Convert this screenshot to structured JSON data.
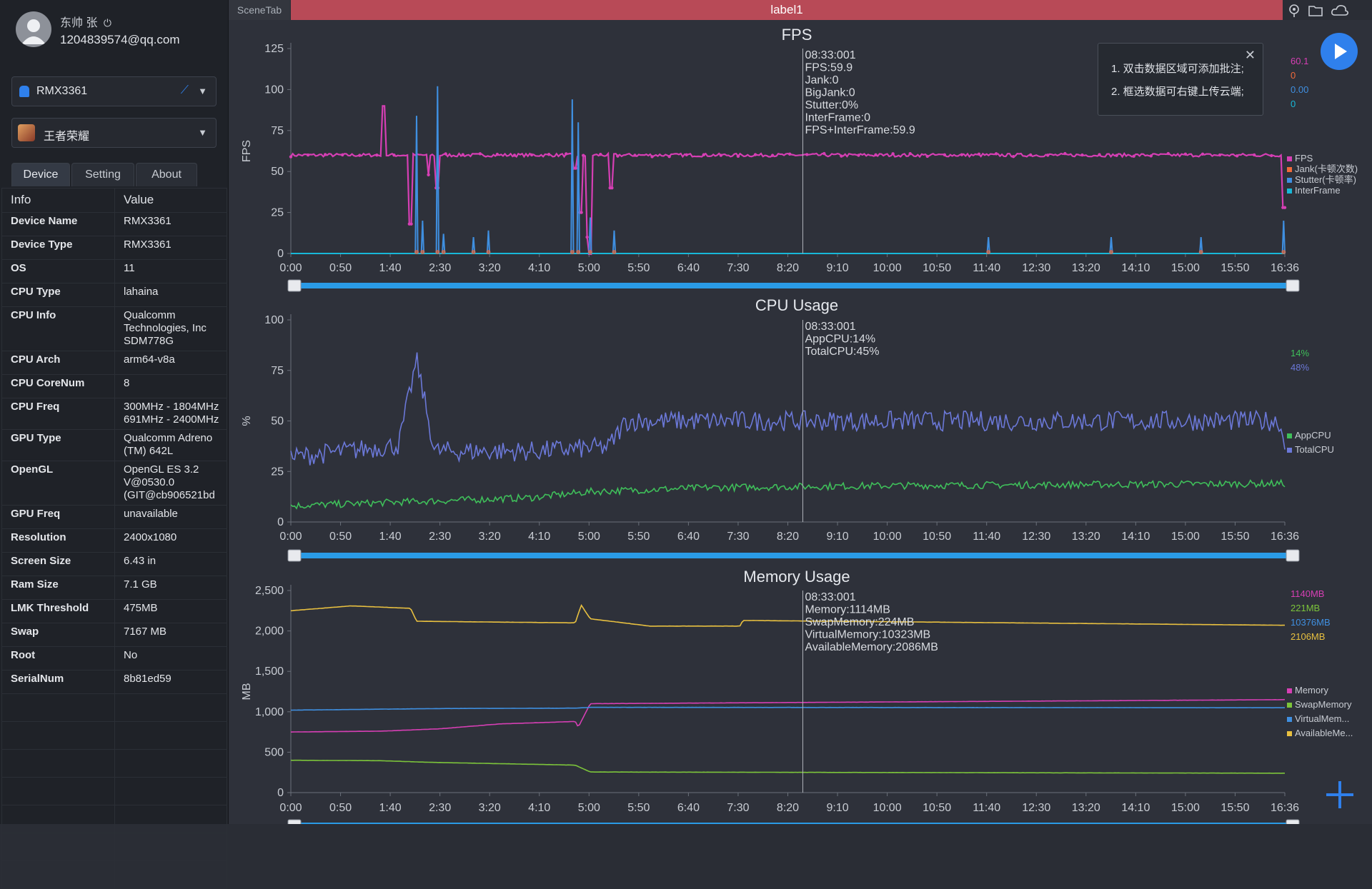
{
  "user": {
    "name": "东帅 张",
    "email": "1204839574@qq.com"
  },
  "device_selector": {
    "value": "RMX3361"
  },
  "app_selector": {
    "value": "王者荣耀"
  },
  "tabs": [
    "Device",
    "Setting",
    "About"
  ],
  "info_table": {
    "headers": [
      "Info",
      "Value"
    ],
    "rows": [
      {
        "k": "Device Name",
        "v": "RMX3361"
      },
      {
        "k": "Device Type",
        "v": "RMX3361"
      },
      {
        "k": "OS",
        "v": "11"
      },
      {
        "k": "CPU Type",
        "v": "lahaina"
      },
      {
        "k": "CPU Info",
        "v": "Qualcomm\nTechnologies, Inc\nSDM778G"
      },
      {
        "k": "CPU Arch",
        "v": "arm64-v8a"
      },
      {
        "k": "CPU CoreNum",
        "v": "8"
      },
      {
        "k": "CPU Freq",
        "v": "300MHz - 1804MHz\n691MHz - 2400MHz"
      },
      {
        "k": "GPU Type",
        "v": "Qualcomm Adreno\n(TM) 642L"
      },
      {
        "k": "OpenGL",
        "v": "OpenGL ES 3.2\nV@0530.0\n(GIT@cb906521bd"
      },
      {
        "k": "GPU Freq",
        "v": "unavailable"
      },
      {
        "k": "Resolution",
        "v": "2400x1080"
      },
      {
        "k": "Screen Size",
        "v": "6.43 in"
      },
      {
        "k": "Ram Size",
        "v": "7.1 GB"
      },
      {
        "k": "LMK Threshold",
        "v": "475MB"
      },
      {
        "k": "Swap",
        "v": "7167 MB"
      },
      {
        "k": "Root",
        "v": "No"
      },
      {
        "k": "SerialNum",
        "v": "8b81ed59"
      }
    ]
  },
  "topbar": {
    "scene_tab": "SceneTab",
    "label": "label1"
  },
  "toolbar_icons": [
    "location-icon",
    "folder-icon",
    "cloud-icon"
  ],
  "notice": {
    "lines": [
      "1. 双击数据区域可添加批注;",
      "2. 框选数据可右键上传云端;"
    ]
  },
  "colors": {
    "fps": "#d63fb4",
    "jank": "#f06a3a",
    "stutter": "#3f8fe0",
    "interframe": "#18b8d8",
    "appcpu": "#3fbf5a",
    "totalcpu": "#6b78d8",
    "memory": "#d63fb4",
    "swap": "#7cc43a",
    "virtual": "#3f8fe0",
    "available": "#e8c040",
    "accent": "#2a9be6"
  },
  "chart_data": [
    {
      "type": "line",
      "title": "FPS",
      "ylabel": "FPS",
      "ylim": [
        0,
        125
      ],
      "yticks": [
        "0",
        "25",
        "50",
        "75",
        "100",
        "125"
      ],
      "xticks": [
        "0:00",
        "0:50",
        "1:40",
        "2:30",
        "3:20",
        "4:10",
        "5:00",
        "5:50",
        "6:40",
        "7:30",
        "8:20",
        "9:10",
        "10:00",
        "10:50",
        "11:40",
        "12:30",
        "13:20",
        "14:10",
        "15:00",
        "15:50",
        "16:36"
      ],
      "cursor": {
        "time": "08:33:001",
        "lines": [
          "08:33:001",
          "FPS:59.9",
          "Jank:0",
          "BigJank:0",
          "Stutter:0%",
          "InterFrame:0",
          "FPS+InterFrame:59.9"
        ]
      },
      "series": [
        {
          "name": "FPS",
          "color": "#d63fb4",
          "baseline": 60,
          "dips": [
            [
              1.55,
              90
            ],
            [
              2.0,
              18
            ],
            [
              2.3,
              48
            ],
            [
              2.45,
              40
            ],
            [
              4.75,
              52
            ],
            [
              4.85,
              25
            ],
            [
              4.95,
              10
            ],
            [
              5.0,
              0
            ],
            [
              5.35,
              40
            ],
            [
              16.58,
              28
            ]
          ]
        },
        {
          "name": "Jank(卡顿次数)",
          "color": "#f06a3a"
        },
        {
          "name": "Stutter(卡顿率)",
          "color": "#3f8fe0",
          "spikes": [
            [
              2.1,
              84
            ],
            [
              2.2,
              20
            ],
            [
              2.45,
              102
            ],
            [
              2.55,
              12
            ],
            [
              3.05,
              10
            ],
            [
              3.3,
              14
            ],
            [
              4.7,
              94
            ],
            [
              4.8,
              80
            ],
            [
              5.0,
              22
            ],
            [
              5.4,
              14
            ],
            [
              11.65,
              10
            ],
            [
              13.7,
              10
            ],
            [
              15.2,
              10
            ],
            [
              16.58,
              20
            ]
          ]
        },
        {
          "name": "InterFrame",
          "color": "#18b8d8"
        }
      ],
      "right_values": [
        "60.1",
        "0",
        "0.00",
        "0"
      ]
    },
    {
      "type": "line",
      "title": "CPU Usage",
      "ylabel": "%",
      "ylim": [
        0,
        100
      ],
      "yticks": [
        "0",
        "25",
        "50",
        "75",
        "100"
      ],
      "xticks": [
        "0:00",
        "0:50",
        "1:40",
        "2:30",
        "3:20",
        "4:10",
        "5:00",
        "5:50",
        "6:40",
        "7:30",
        "8:20",
        "9:10",
        "10:00",
        "10:50",
        "11:40",
        "12:30",
        "13:20",
        "14:10",
        "15:00",
        "15:50",
        "16:36"
      ],
      "cursor": {
        "time": "08:33:001",
        "lines": [
          "08:33:001",
          "AppCPU:14%",
          "TotalCPU:45%"
        ]
      },
      "series": [
        {
          "name": "AppCPU",
          "color": "#3fbf5a",
          "profile": [
            [
              0,
              8
            ],
            [
              4,
              12
            ],
            [
              5,
              15
            ],
            [
              7,
              17
            ],
            [
              10,
              18
            ],
            [
              16.6,
              19
            ]
          ]
        },
        {
          "name": "TotalCPU",
          "color": "#6b78d8",
          "profile": [
            [
              0,
              32
            ],
            [
              1.8,
              38
            ],
            [
              2.1,
              80
            ],
            [
              2.4,
              35
            ],
            [
              4.0,
              35
            ],
            [
              5.3,
              37
            ],
            [
              5.6,
              50
            ],
            [
              16.5,
              50
            ],
            [
              16.6,
              38
            ]
          ]
        }
      ],
      "right_values": [
        "14%",
        "48%"
      ]
    },
    {
      "type": "line",
      "title": "Memory Usage",
      "ylabel": "MB",
      "ylim": [
        0,
        2500
      ],
      "yticks": [
        "0",
        "500",
        "1,000",
        "1,500",
        "2,000",
        "2,500"
      ],
      "xticks": [
        "0:00",
        "0:50",
        "1:40",
        "2:30",
        "3:20",
        "4:10",
        "5:00",
        "5:50",
        "6:40",
        "7:30",
        "8:20",
        "9:10",
        "10:00",
        "10:50",
        "11:40",
        "12:30",
        "13:20",
        "14:10",
        "15:00",
        "15:50",
        "16:36"
      ],
      "cursor": {
        "time": "08:33:001",
        "lines": [
          "08:33:001",
          "Memory:1114MB",
          "SwapMemory:224MB",
          "VirtualMemory:10323MB",
          "AvailableMemory:2086MB"
        ]
      },
      "series": [
        {
          "name": "Memory",
          "color": "#d63fb4",
          "profile": [
            [
              0,
              750
            ],
            [
              1.5,
              760
            ],
            [
              2.5,
              790
            ],
            [
              3.5,
              850
            ],
            [
              4.75,
              880
            ],
            [
              4.8,
              810
            ],
            [
              5.0,
              1100
            ],
            [
              16.6,
              1150
            ]
          ]
        },
        {
          "name": "SwapMemory",
          "color": "#7cc43a",
          "profile": [
            [
              0,
              400
            ],
            [
              1.5,
              395
            ],
            [
              2.3,
              375
            ],
            [
              4.75,
              340
            ],
            [
              5.0,
              255
            ],
            [
              16.6,
              240
            ]
          ]
        },
        {
          "name": "VirtualMem...",
          "color": "#3f8fe0",
          "profile": [
            [
              0,
              1020
            ],
            [
              2.5,
              1040
            ],
            [
              4.75,
              1045
            ],
            [
              5.0,
              1055
            ],
            [
              16.6,
              1050
            ]
          ]
        },
        {
          "name": "AvailableMe...",
          "color": "#e8c040",
          "profile": [
            [
              0,
              2250
            ],
            [
              1.0,
              2310
            ],
            [
              2.0,
              2280
            ],
            [
              2.1,
              2120
            ],
            [
              4.75,
              2100
            ],
            [
              4.85,
              2320
            ],
            [
              5.0,
              2150
            ],
            [
              6.0,
              2060
            ],
            [
              7.5,
              2060
            ],
            [
              7.55,
              2130
            ],
            [
              16.6,
              2070
            ]
          ]
        }
      ],
      "right_values": [
        "1140MB",
        "221MB",
        "10376MB",
        "2106MB"
      ]
    }
  ]
}
